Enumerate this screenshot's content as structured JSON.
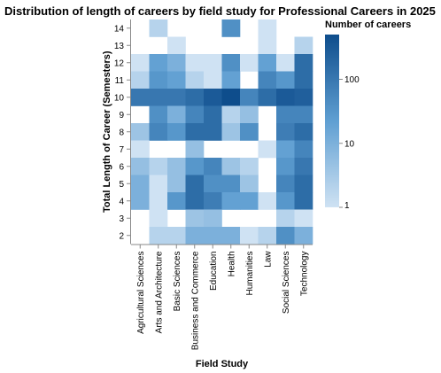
{
  "chart_data": {
    "type": "heatmap",
    "title": "Distribution of length of careers by field study for Professional Careers in 2025",
    "xlabel": "Field Study",
    "ylabel": "Total Length of Career (Semesters)",
    "categories": [
      "Agricultural Sciences",
      "Arts and Architecture",
      "Basic Sciences",
      "Business and Commerce",
      "Education",
      "Health",
      "Humanities",
      "Law",
      "Social Sciences",
      "Technology"
    ],
    "y_values": [
      14,
      13,
      12,
      11,
      10,
      9,
      8,
      7,
      6,
      5,
      4,
      3,
      2
    ],
    "color_scale": "log",
    "legend": {
      "title": "Number of careers",
      "ticks": [
        1,
        10,
        100
      ],
      "domain": [
        1,
        500
      ],
      "range_colors": [
        "#cfe2f3",
        "#0e4d8c"
      ]
    },
    "cells": [
      {
        "x": "Arts and Architecture",
        "y": 14,
        "value": 2
      },
      {
        "x": "Health",
        "y": 14,
        "value": 40
      },
      {
        "x": "Law",
        "y": 14,
        "value": 1
      },
      {
        "x": "Basic Sciences",
        "y": 13,
        "value": 1
      },
      {
        "x": "Law",
        "y": 13,
        "value": 1
      },
      {
        "x": "Technology",
        "y": 13,
        "value": 2
      },
      {
        "x": "Agricultural Sciences",
        "y": 12,
        "value": 1
      },
      {
        "x": "Arts and Architecture",
        "y": 12,
        "value": 20
      },
      {
        "x": "Basic Sciences",
        "y": 12,
        "value": 10
      },
      {
        "x": "Business and Commerce",
        "y": 12,
        "value": 1
      },
      {
        "x": "Education",
        "y": 12,
        "value": 1
      },
      {
        "x": "Health",
        "y": 12,
        "value": 40
      },
      {
        "x": "Humanities",
        "y": 12,
        "value": 1
      },
      {
        "x": "Law",
        "y": 12,
        "value": 20
      },
      {
        "x": "Social Sciences",
        "y": 12,
        "value": 1
      },
      {
        "x": "Technology",
        "y": 12,
        "value": 150
      },
      {
        "x": "Agricultural Sciences",
        "y": 11,
        "value": 2
      },
      {
        "x": "Arts and Architecture",
        "y": 11,
        "value": 30
      },
      {
        "x": "Basic Sciences",
        "y": 11,
        "value": 20
      },
      {
        "x": "Business and Commerce",
        "y": 11,
        "value": 2
      },
      {
        "x": "Education",
        "y": 11,
        "value": 1
      },
      {
        "x": "Health",
        "y": 11,
        "value": 20
      },
      {
        "x": "Law",
        "y": 11,
        "value": 60
      },
      {
        "x": "Social Sciences",
        "y": 11,
        "value": 30
      },
      {
        "x": "Technology",
        "y": 11,
        "value": 150
      },
      {
        "x": "Agricultural Sciences",
        "y": 10,
        "value": 100
      },
      {
        "x": "Arts and Architecture",
        "y": 10,
        "value": 100
      },
      {
        "x": "Basic Sciences",
        "y": 10,
        "value": 100
      },
      {
        "x": "Business and Commerce",
        "y": 10,
        "value": 150
      },
      {
        "x": "Education",
        "y": 10,
        "value": 300
      },
      {
        "x": "Health",
        "y": 10,
        "value": 500
      },
      {
        "x": "Humanities",
        "y": 10,
        "value": 60
      },
      {
        "x": "Law",
        "y": 10,
        "value": 150
      },
      {
        "x": "Social Sciences",
        "y": 10,
        "value": 300
      },
      {
        "x": "Technology",
        "y": 10,
        "value": 250
      },
      {
        "x": "Arts and Architecture",
        "y": 9,
        "value": 40
      },
      {
        "x": "Basic Sciences",
        "y": 9,
        "value": 10
      },
      {
        "x": "Business and Commerce",
        "y": 9,
        "value": 60
      },
      {
        "x": "Education",
        "y": 9,
        "value": 150
      },
      {
        "x": "Health",
        "y": 9,
        "value": 2
      },
      {
        "x": "Humanities",
        "y": 9,
        "value": 5
      },
      {
        "x": "Social Sciences",
        "y": 9,
        "value": 60
      },
      {
        "x": "Technology",
        "y": 9,
        "value": 60
      },
      {
        "x": "Agricultural Sciences",
        "y": 8,
        "value": 4
      },
      {
        "x": "Arts and Architecture",
        "y": 8,
        "value": 60
      },
      {
        "x": "Basic Sciences",
        "y": 8,
        "value": 30
      },
      {
        "x": "Business and Commerce",
        "y": 8,
        "value": 150
      },
      {
        "x": "Education",
        "y": 8,
        "value": 150
      },
      {
        "x": "Health",
        "y": 8,
        "value": 4
      },
      {
        "x": "Humanities",
        "y": 8,
        "value": 40
      },
      {
        "x": "Social Sciences",
        "y": 8,
        "value": 80
      },
      {
        "x": "Technology",
        "y": 8,
        "value": 150
      },
      {
        "x": "Agricultural Sciences",
        "y": 7,
        "value": 1
      },
      {
        "x": "Business and Commerce",
        "y": 7,
        "value": 5
      },
      {
        "x": "Law",
        "y": 7,
        "value": 1
      },
      {
        "x": "Social Sciences",
        "y": 7,
        "value": 20
      },
      {
        "x": "Technology",
        "y": 7,
        "value": 60
      },
      {
        "x": "Agricultural Sciences",
        "y": 6,
        "value": 5
      },
      {
        "x": "Arts and Architecture",
        "y": 6,
        "value": 2
      },
      {
        "x": "Basic Sciences",
        "y": 6,
        "value": 5
      },
      {
        "x": "Business and Commerce",
        "y": 6,
        "value": 30
      },
      {
        "x": "Education",
        "y": 6,
        "value": 60
      },
      {
        "x": "Health",
        "y": 6,
        "value": 4
      },
      {
        "x": "Humanities",
        "y": 6,
        "value": 2
      },
      {
        "x": "Social Sciences",
        "y": 6,
        "value": 30
      },
      {
        "x": "Technology",
        "y": 6,
        "value": 100
      },
      {
        "x": "Agricultural Sciences",
        "y": 5,
        "value": 10
      },
      {
        "x": "Arts and Architecture",
        "y": 5,
        "value": 1
      },
      {
        "x": "Basic Sciences",
        "y": 5,
        "value": 5
      },
      {
        "x": "Business and Commerce",
        "y": 5,
        "value": 150
      },
      {
        "x": "Education",
        "y": 5,
        "value": 40
      },
      {
        "x": "Health",
        "y": 5,
        "value": 40
      },
      {
        "x": "Humanities",
        "y": 5,
        "value": 4
      },
      {
        "x": "Social Sciences",
        "y": 5,
        "value": 60
      },
      {
        "x": "Technology",
        "y": 5,
        "value": 150
      },
      {
        "x": "Agricultural Sciences",
        "y": 4,
        "value": 10
      },
      {
        "x": "Arts and Architecture",
        "y": 4,
        "value": 1
      },
      {
        "x": "Basic Sciences",
        "y": 4,
        "value": 30
      },
      {
        "x": "Business and Commerce",
        "y": 4,
        "value": 150
      },
      {
        "x": "Education",
        "y": 4,
        "value": 80
      },
      {
        "x": "Health",
        "y": 4,
        "value": 20
      },
      {
        "x": "Humanities",
        "y": 4,
        "value": 20
      },
      {
        "x": "Law",
        "y": 4,
        "value": 1
      },
      {
        "x": "Social Sciences",
        "y": 4,
        "value": 30
      },
      {
        "x": "Technology",
        "y": 4,
        "value": 150
      },
      {
        "x": "Arts and Architecture",
        "y": 3,
        "value": 1
      },
      {
        "x": "Business and Commerce",
        "y": 3,
        "value": 4
      },
      {
        "x": "Education",
        "y": 3,
        "value": 5
      },
      {
        "x": "Social Sciences",
        "y": 3,
        "value": 2
      },
      {
        "x": "Technology",
        "y": 3,
        "value": 1
      },
      {
        "x": "Arts and Architecture",
        "y": 2,
        "value": 2
      },
      {
        "x": "Basic Sciences",
        "y": 2,
        "value": 2
      },
      {
        "x": "Business and Commerce",
        "y": 2,
        "value": 10
      },
      {
        "x": "Education",
        "y": 2,
        "value": 10
      },
      {
        "x": "Health",
        "y": 2,
        "value": 10
      },
      {
        "x": "Humanities",
        "y": 2,
        "value": 1
      },
      {
        "x": "Law",
        "y": 2,
        "value": 2
      },
      {
        "x": "Social Sciences",
        "y": 2,
        "value": 40
      },
      {
        "x": "Technology",
        "y": 2,
        "value": 10
      }
    ]
  }
}
